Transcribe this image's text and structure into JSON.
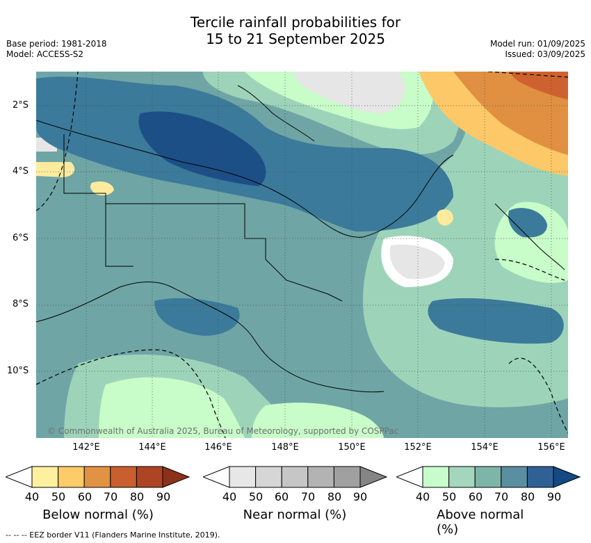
{
  "header": {
    "title_line1": "Tercile rainfall probabilities for",
    "title_line2": "15 to 21 September 2025",
    "base_period": "Base period: 1981-2018",
    "model": "Model: ACCESS-S2",
    "model_run": "Model run: 01/09/2025",
    "issued": "Issued: 03/09/2025"
  },
  "map": {
    "lat_labels": [
      "2°S",
      "4°S",
      "6°S",
      "8°S",
      "10°S"
    ],
    "lon_labels": [
      "142°E",
      "144°E",
      "146°E",
      "148°E",
      "150°E",
      "152°E",
      "154°E",
      "156°E"
    ],
    "copyright": "© Commonwealth of Australia 2025, Bureau of Meteorology, supported by COSPPac",
    "colors": {
      "ocean_bg": "#8fc3b4",
      "above_50": "#c8fcc8",
      "above_60": "#9dd4b9",
      "above_70": "#6fa5a5",
      "above_80": "#3b7a9a",
      "above_90": "#1d4f87",
      "near_40": "#e6e6e6",
      "below_50": "#ffeb9e",
      "below_60": "#fdc867",
      "below_70": "#e09040",
      "below_80": "#cd622f"
    }
  },
  "legend": {
    "bars": [
      {
        "title": "Below normal (%)",
        "ticks": [
          "40",
          "50",
          "60",
          "70",
          "80",
          "90"
        ],
        "colors": [
          "#ffffff",
          "#fff0a0",
          "#fecb68",
          "#e19243",
          "#c95f2e",
          "#ad4424",
          "#8e3119"
        ]
      },
      {
        "title": "Near normal (%)",
        "ticks": [
          "40",
          "50",
          "60",
          "70",
          "80",
          "90"
        ],
        "colors": [
          "#ffffff",
          "#e7e7e7",
          "#d6d6d6",
          "#c6c6c6",
          "#b3b3b3",
          "#a0a0a0",
          "#858585"
        ]
      },
      {
        "title": "Above normal (%)",
        "ticks": [
          "40",
          "50",
          "60",
          "70",
          "80",
          "90"
        ],
        "colors": [
          "#ffffff",
          "#c8fccc",
          "#a3d6bd",
          "#7eb5a9",
          "#5a8ea1",
          "#2f6196",
          "#134a82"
        ]
      }
    ]
  },
  "footer": {
    "eez_note": "-- -- -- EEZ border V11 (Flanders Marine Institute, 2019)."
  }
}
